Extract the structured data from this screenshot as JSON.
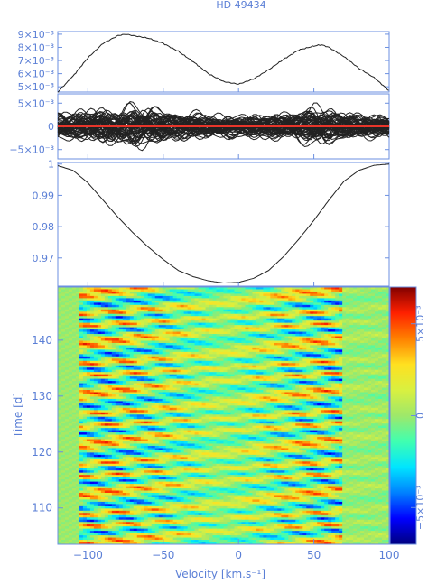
{
  "title": "HD   49434",
  "xlabel": "Velocity [km.s⁻¹]",
  "ylabel_bottom": "Time [d]",
  "chart_data": [
    {
      "type": "line",
      "panel": "mean-spectrum-variance",
      "x": [
        -120,
        -110,
        -100,
        -90,
        -80,
        -75,
        -70,
        -60,
        -50,
        -40,
        -30,
        -20,
        -10,
        0,
        10,
        20,
        30,
        40,
        50,
        55,
        60,
        70,
        80,
        90,
        100
      ],
      "values": [
        0.0046,
        0.0058,
        0.0072,
        0.0083,
        0.0089,
        0.009,
        0.0089,
        0.0087,
        0.0083,
        0.0077,
        0.0069,
        0.006,
        0.0054,
        0.0052,
        0.0056,
        0.0063,
        0.0071,
        0.0078,
        0.0081,
        0.0082,
        0.008,
        0.0073,
        0.0064,
        0.0057,
        0.0047
      ],
      "ylim": [
        0.0046,
        0.0092
      ],
      "ytick_labels": [
        "9×10⁻³",
        "8×10⁻³",
        "7×10⁻³",
        "6×10⁻³",
        "5×10⁻³"
      ],
      "ytick_values": [
        0.009,
        0.008,
        0.007,
        0.006,
        0.005
      ]
    },
    {
      "type": "line",
      "panel": "residual-profiles",
      "description_values": "many overplotted residual curves within ±5e-3, zero line in red",
      "envelope_x": [
        -120,
        -100,
        -80,
        -70,
        -60,
        -40,
        -20,
        0,
        20,
        40,
        50,
        60,
        80,
        100
      ],
      "envelope": [
        0.0035,
        0.0045,
        0.0055,
        0.006,
        0.0055,
        0.004,
        0.0035,
        0.003,
        0.0035,
        0.0045,
        0.0055,
        0.005,
        0.0035,
        0.003
      ],
      "ylim": [
        -0.007,
        0.007
      ],
      "ytick_labels": [
        "5×10⁻³",
        "0",
        "−5×10⁻³"
      ],
      "ytick_values": [
        0.005,
        0,
        -0.005
      ],
      "zero_line_color": "#e8352a"
    },
    {
      "type": "line",
      "panel": "mean-line-profile",
      "x": [
        -120,
        -110,
        -100,
        -90,
        -80,
        -70,
        -60,
        -50,
        -40,
        -30,
        -20,
        -10,
        0,
        10,
        20,
        30,
        40,
        50,
        60,
        70,
        80,
        90,
        100
      ],
      "values": [
        0.9995,
        0.998,
        0.994,
        0.9885,
        0.983,
        0.978,
        0.9735,
        0.9695,
        0.966,
        0.964,
        0.9627,
        0.962,
        0.9622,
        0.9635,
        0.966,
        0.9705,
        0.976,
        0.982,
        0.9885,
        0.9945,
        0.998,
        0.9996,
        1.0
      ],
      "ylim": [
        0.961,
        1.0005
      ],
      "ytick_labels": [
        "1",
        "0.99",
        "0.98",
        "0.97"
      ],
      "ytick_values": [
        1.0,
        0.99,
        0.98,
        0.97
      ]
    },
    {
      "type": "heatmap",
      "panel": "dynamic-spectrum",
      "xlim": [
        -120,
        100
      ],
      "ylim": [
        103.5,
        149.5
      ],
      "xtick_labels": [
        "−100",
        "−50",
        "0",
        "50",
        "100"
      ],
      "xtick_values": [
        -100,
        -50,
        0,
        50,
        100
      ],
      "ytick_labels": [
        "140",
        "130",
        "120",
        "110"
      ],
      "ytick_values": [
        140,
        130,
        120,
        110
      ],
      "colorbar_range": [
        -0.007,
        0.007
      ],
      "colorbar_tick_labels": [
        "5×10⁻³",
        "0",
        "−5×10⁻³"
      ],
      "colorbar_tick_values": [
        0.005,
        0,
        -0.005
      ],
      "colormap": [
        "#00007f",
        "#0000ff",
        "#0080ff",
        "#00e5ff",
        "#40ffb0",
        "#9ee86a",
        "#d9f040",
        "#ffe020",
        "#ff8000",
        "#ff2000",
        "#800000"
      ]
    }
  ]
}
